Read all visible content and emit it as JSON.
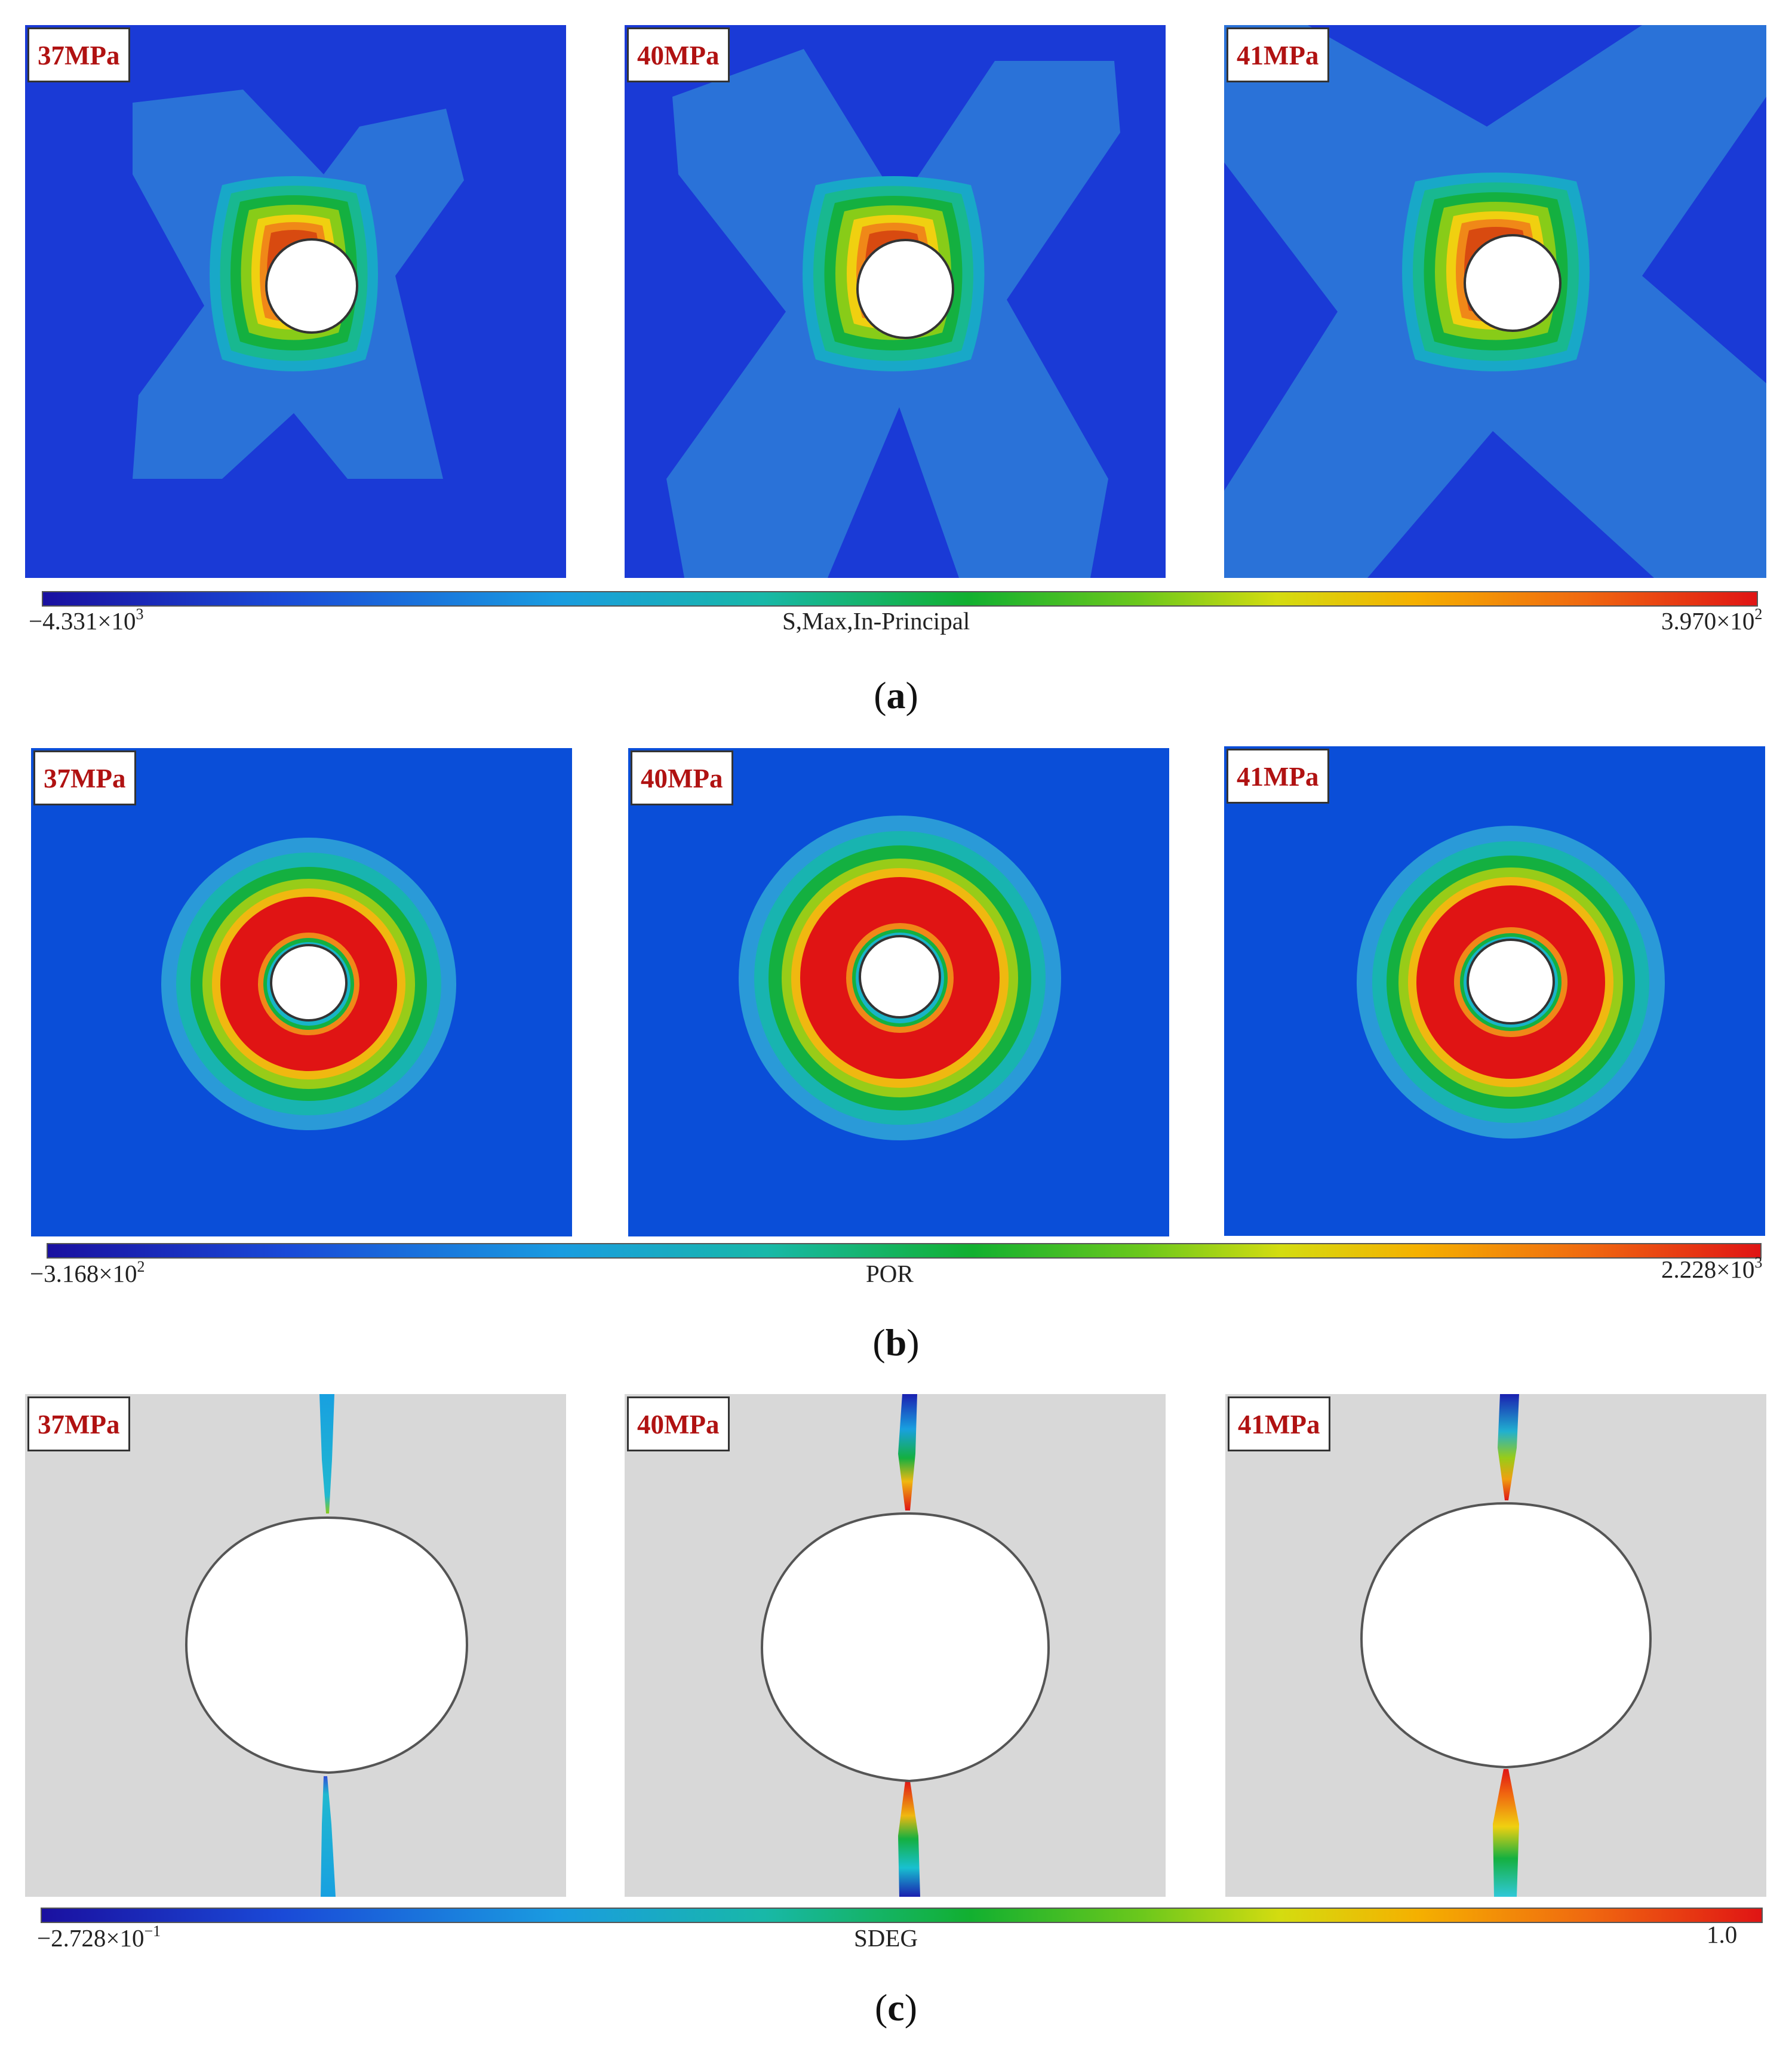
{
  "figure": {
    "rows": [
      {
        "id": "a",
        "caption_letter": "a",
        "field_name": "S,Max,In-Principal",
        "min_value": "−4.331×10",
        "min_exp": "3",
        "max_value": "3.970×10",
        "max_exp": "2",
        "panels": [
          {
            "pressure": "37MPa"
          },
          {
            "pressure": "40MPa"
          },
          {
            "pressure": "41MPa"
          }
        ]
      },
      {
        "id": "b",
        "caption_letter": "b",
        "field_name": "POR",
        "min_value": "−3.168×10",
        "min_exp": "2",
        "max_value": "2.228×10",
        "max_exp": "3",
        "panels": [
          {
            "pressure": "37MPa"
          },
          {
            "pressure": "40MPa"
          },
          {
            "pressure": "41MPa"
          }
        ]
      },
      {
        "id": "c",
        "caption_letter": "c",
        "field_name": "SDEG",
        "min_value": "−2.728×10",
        "min_exp": "−1",
        "max_value": "1.0",
        "max_exp": "",
        "panels": [
          {
            "pressure": "37MPa"
          },
          {
            "pressure": "40MPa"
          },
          {
            "pressure": "41MPa"
          }
        ]
      }
    ],
    "colors": {
      "background_blue_a": "#1a3ad6",
      "background_blue_b": "#0a4ed8",
      "background_gray_c": "#d8d8d8",
      "label_red": "#b01212"
    }
  }
}
